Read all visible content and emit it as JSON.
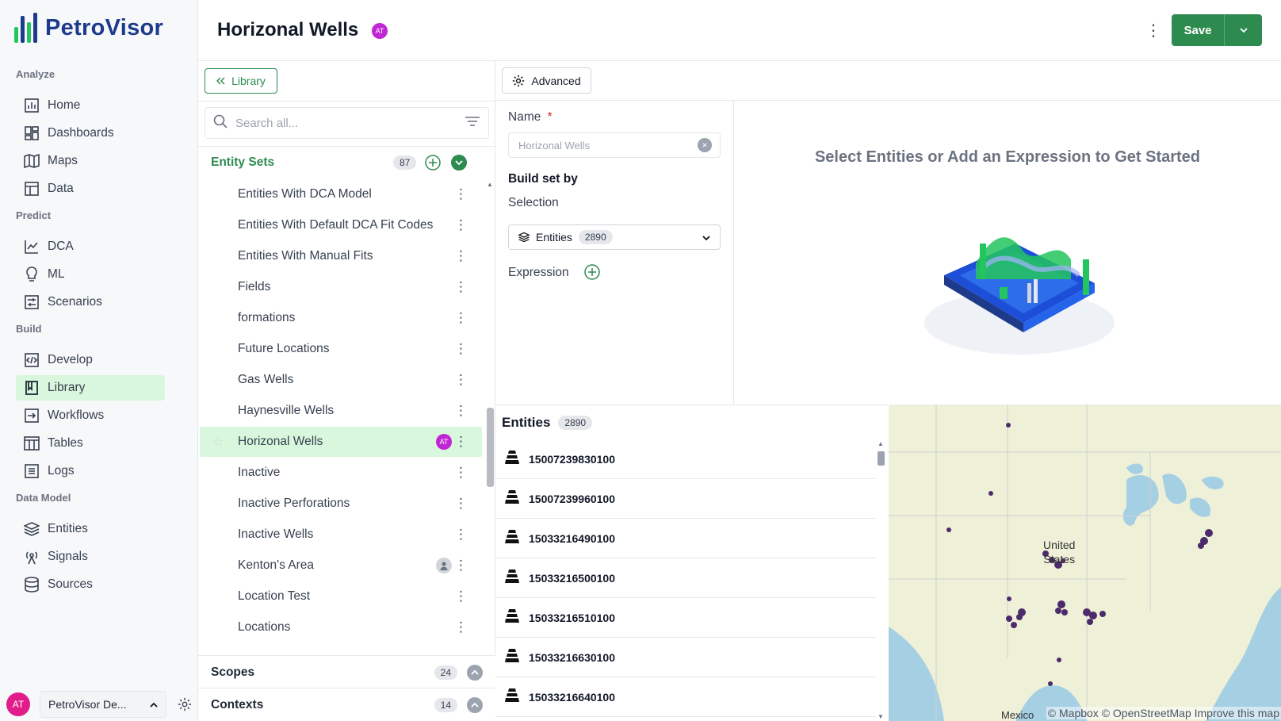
{
  "app": {
    "brand": "PetroVisor",
    "page_title": "Horizonal Wells",
    "title_badge": "AT",
    "save_label": "Save"
  },
  "sidebar": {
    "sections": [
      {
        "label": "Analyze",
        "items": [
          {
            "label": "Home",
            "icon": "bar-chart-icon"
          },
          {
            "label": "Dashboards",
            "icon": "dashboard-icon"
          },
          {
            "label": "Maps",
            "icon": "map-icon"
          },
          {
            "label": "Data",
            "icon": "table-icon"
          }
        ]
      },
      {
        "label": "Predict",
        "items": [
          {
            "label": "DCA",
            "icon": "line-chart-icon"
          },
          {
            "label": "ML",
            "icon": "lightbulb-icon"
          },
          {
            "label": "Scenarios",
            "icon": "scenarios-icon"
          }
        ]
      },
      {
        "label": "Build",
        "items": [
          {
            "label": "Develop",
            "icon": "code-icon"
          },
          {
            "label": "Library",
            "icon": "book-icon",
            "active": true
          },
          {
            "label": "Workflows",
            "icon": "workflow-icon"
          },
          {
            "label": "Tables",
            "icon": "tables-icon"
          },
          {
            "label": "Logs",
            "icon": "logs-icon"
          }
        ]
      },
      {
        "label": "Data Model",
        "items": [
          {
            "label": "Entities",
            "icon": "layers-icon"
          },
          {
            "label": "Signals",
            "icon": "signal-icon"
          },
          {
            "label": "Sources",
            "icon": "database-icon"
          }
        ]
      }
    ],
    "footer": {
      "avatar": "AT",
      "workspace": "PetroVisor De..."
    }
  },
  "library": {
    "back_label": "Library",
    "search_placeholder": "Search all...",
    "entity_sets": {
      "title": "Entity Sets",
      "count": "87",
      "items": [
        {
          "label": "Entities With DCA Model"
        },
        {
          "label": "Entities With Default DCA Fit Codes"
        },
        {
          "label": "Entities With Manual Fits"
        },
        {
          "label": "Fields"
        },
        {
          "label": "formations"
        },
        {
          "label": "Future Locations"
        },
        {
          "label": "Gas Wells"
        },
        {
          "label": "Haynesville Wells"
        },
        {
          "label": "Horizonal Wells",
          "selected": true,
          "badge": "AT"
        },
        {
          "label": "Inactive"
        },
        {
          "label": "Inactive Perforations"
        },
        {
          "label": "Inactive Wells"
        },
        {
          "label": "Kenton's Area",
          "avatar": true
        },
        {
          "label": "Location Test"
        },
        {
          "label": "Locations"
        }
      ]
    },
    "scopes": {
      "title": "Scopes",
      "count": "24"
    },
    "contexts": {
      "title": "Contexts",
      "count": "14"
    }
  },
  "form": {
    "advanced_label": "Advanced",
    "name_label": "Name",
    "required_mark": "*",
    "name_value": "Horizonal Wells",
    "build_set_by": "Build set by",
    "selection_label": "Selection",
    "entities_select_label": "Entities",
    "entities_select_count": "2890",
    "expression_label": "Expression"
  },
  "empty_state": {
    "message": "Select Entities or Add an Expression to Get Started"
  },
  "entities": {
    "title": "Entities",
    "count": "2890",
    "rows": [
      "15007239830100",
      "15007239960100",
      "15033216490100",
      "15033216500100",
      "15033216510100",
      "15033216630100",
      "15033216640100"
    ]
  },
  "map": {
    "country_label_line1": "United",
    "country_label_line2": "States",
    "mexico_label": "Mexico",
    "attribution": "© Mapbox © OpenStreetMap Improve this map"
  },
  "colors": {
    "brand_green": "#2e8b4f",
    "active_bg": "#d9f7dd",
    "badge_magenta": "#c026d3",
    "map_point": "#4c2a6b"
  }
}
